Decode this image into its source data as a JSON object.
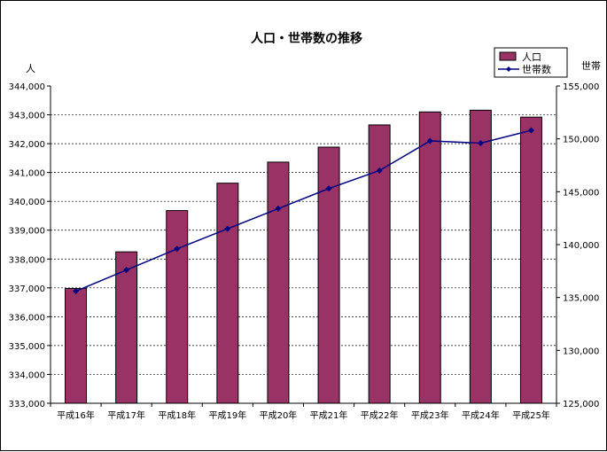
{
  "chart_data": {
    "type": "bar",
    "title": "人口・世帯数の推移",
    "categories": [
      "平成16年",
      "平成17年",
      "平成18年",
      "平成19年",
      "平成20年",
      "平成21年",
      "平成22年",
      "平成23年",
      "平成24年",
      "平成25年"
    ],
    "series": [
      {
        "name": "人口",
        "type": "bar",
        "axis": "left",
        "color": "#993366",
        "values": [
          336980,
          338250,
          339680,
          340630,
          341360,
          341880,
          342650,
          343100,
          343160,
          342920
        ]
      },
      {
        "name": "世帯数",
        "type": "line",
        "axis": "right",
        "color": "#000080",
        "values": [
          135600,
          137600,
          139600,
          141500,
          143400,
          145300,
          147000,
          149800,
          149600,
          150800
        ]
      }
    ],
    "y_left": {
      "unit_label": "人",
      "ylim": [
        333000,
        344000
      ],
      "ticks": [
        "333,000",
        "334,000",
        "335,000",
        "336,000",
        "337,000",
        "338,000",
        "339,000",
        "340,000",
        "341,000",
        "342,000",
        "343,000",
        "344,000"
      ]
    },
    "y_right": {
      "unit_label": "世帯",
      "ylim": [
        125000,
        155000
      ],
      "ticks": [
        "125,000",
        "130,000",
        "135,000",
        "140,000",
        "145,000",
        "150,000",
        "155,000"
      ]
    },
    "grid": true,
    "legend_position": "top-right"
  }
}
